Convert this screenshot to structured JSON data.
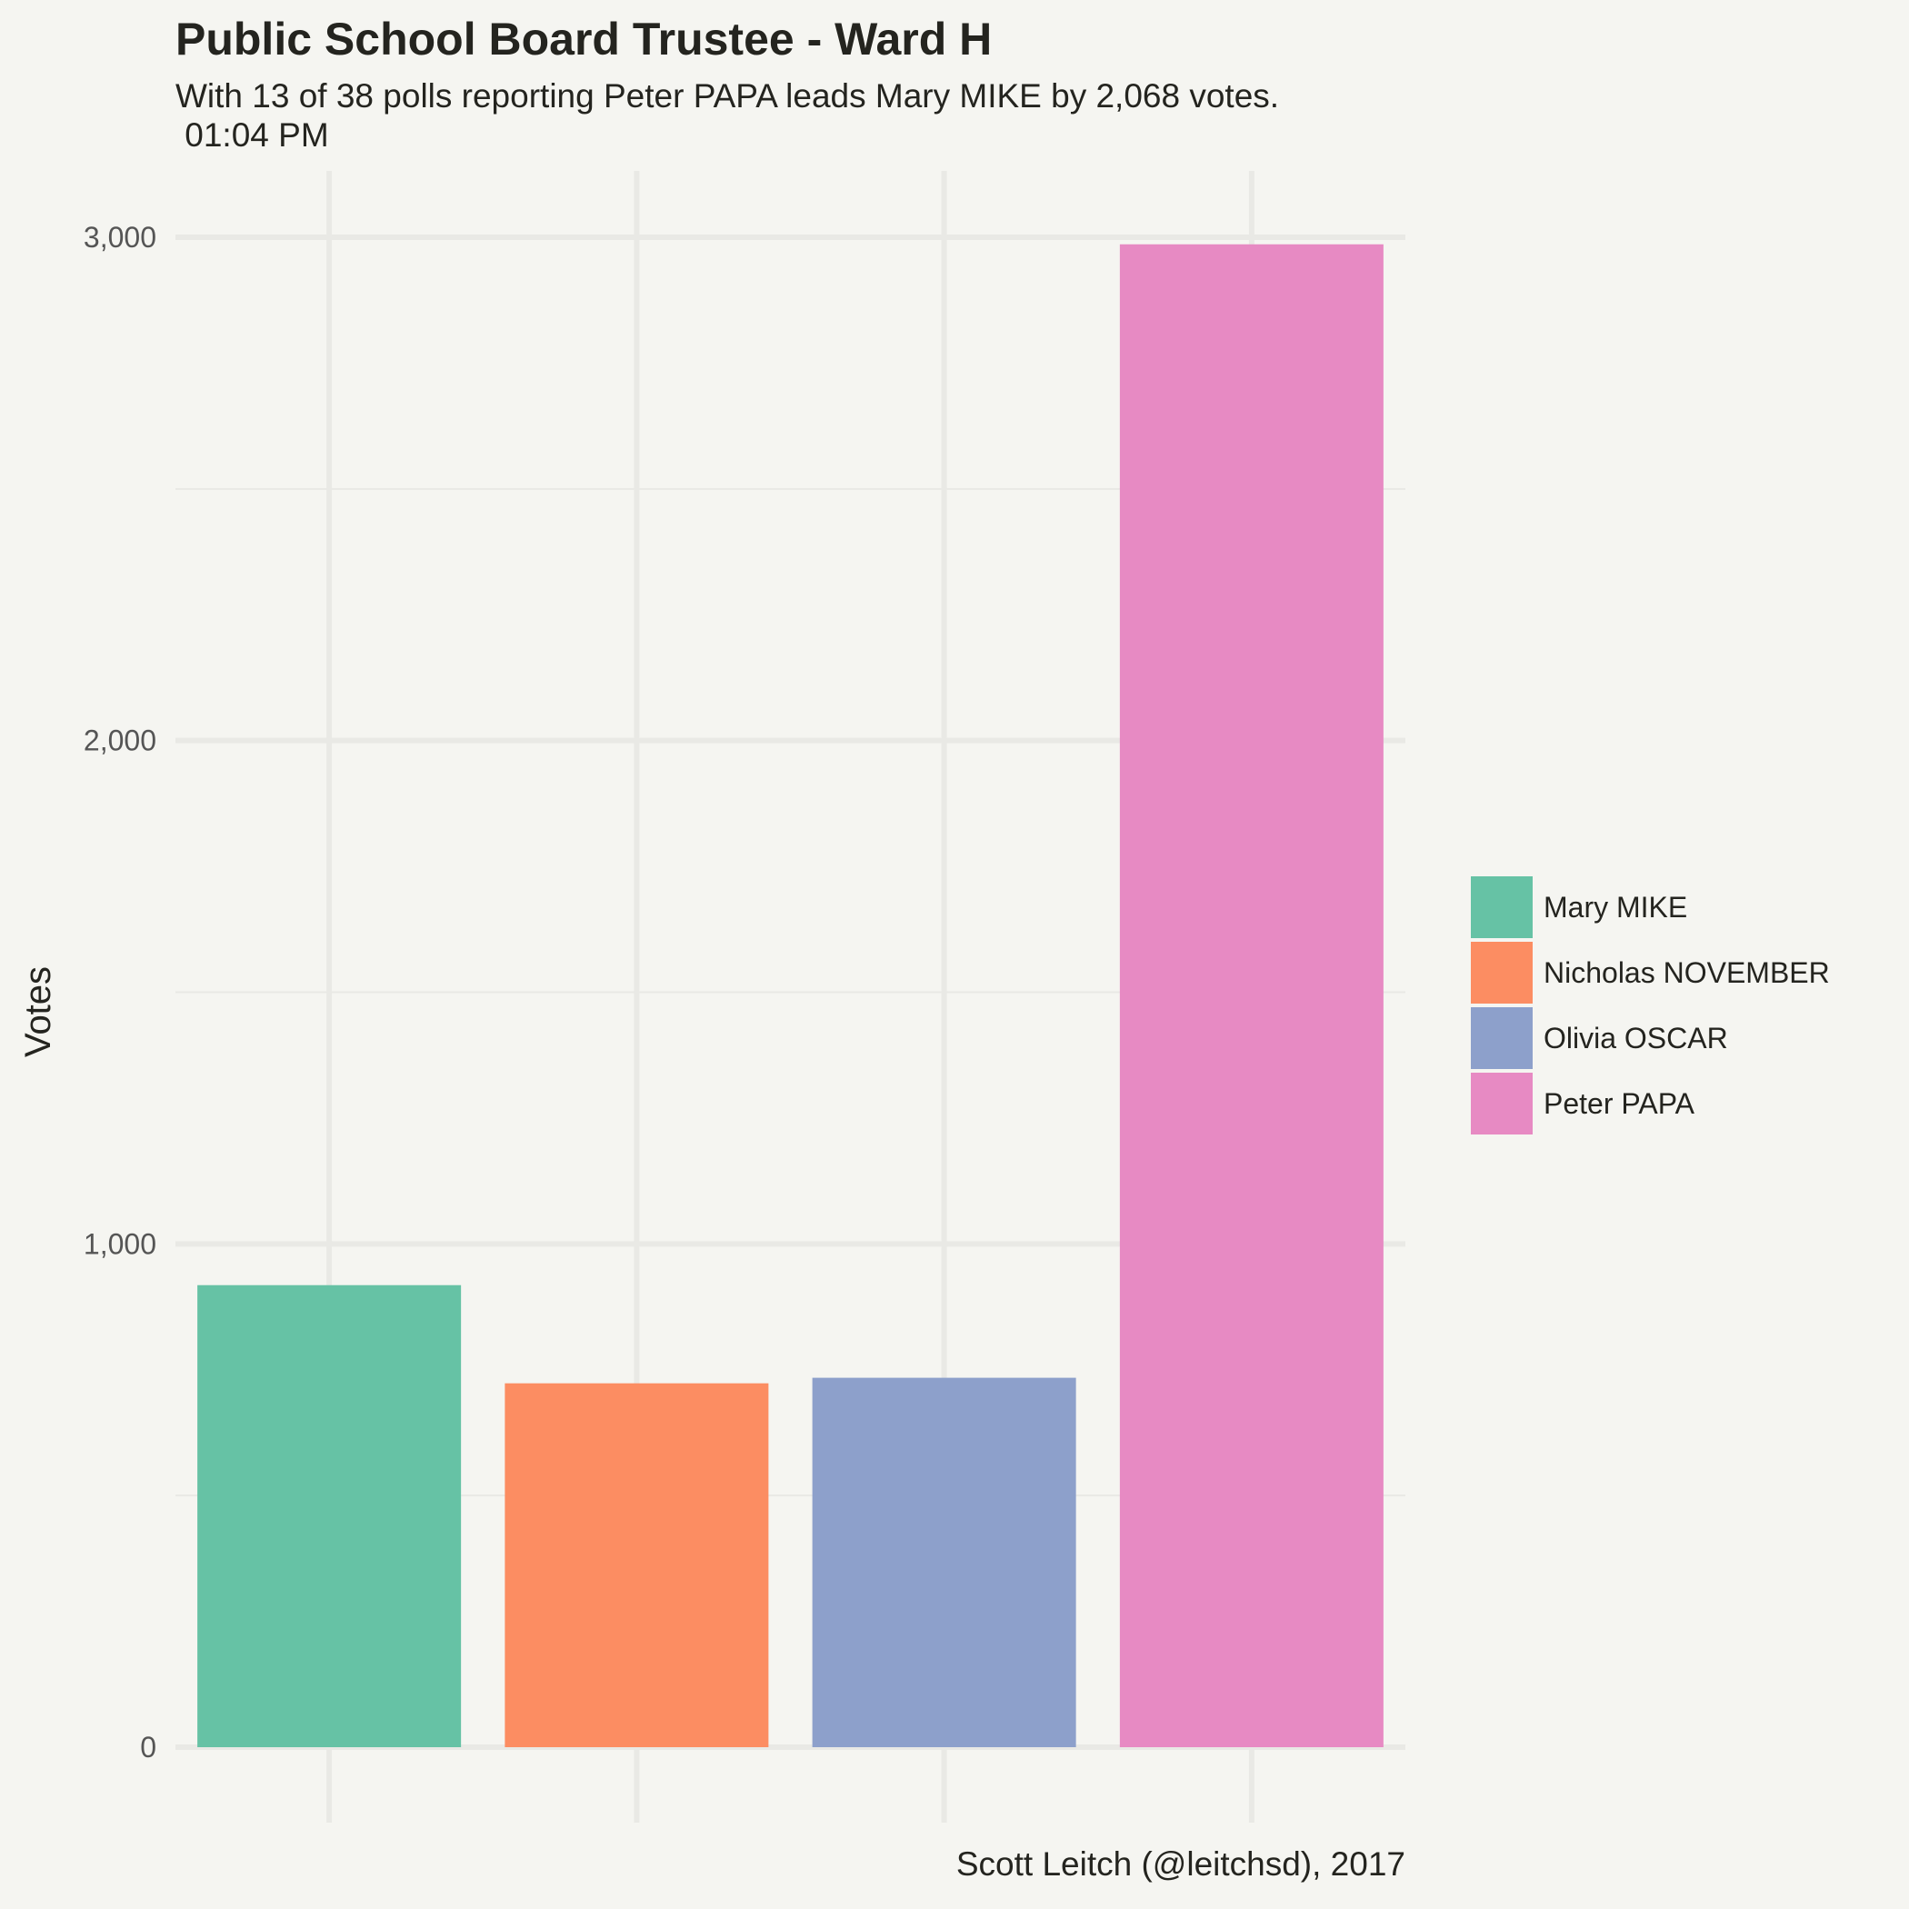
{
  "chart_data": {
    "type": "bar",
    "title": "Public School Board Trustee - Ward H",
    "subtitle": "With 13 of 38 polls reporting Peter PAPA leads Mary MIKE by 2,068 votes.\n 01:04 PM",
    "xlabel": "",
    "ylabel": "Votes",
    "categories": [
      "Mary MIKE",
      "Nicholas NOVEMBER",
      "Olivia OSCAR",
      "Peter PAPA"
    ],
    "values": [
      918,
      723,
      734,
      2986
    ],
    "colors": [
      "#66c2a5",
      "#fc8d62",
      "#8da0cb",
      "#e78ac3"
    ],
    "ylim": [
      0,
      3000
    ],
    "yticks": [
      0,
      1000,
      2000,
      3000
    ],
    "ytick_labels": [
      "0",
      "1,000",
      "2,000",
      "3,000"
    ],
    "grid": true,
    "legend_position": "right",
    "caption": "Scott Leitch (@leitchsd), 2017"
  }
}
